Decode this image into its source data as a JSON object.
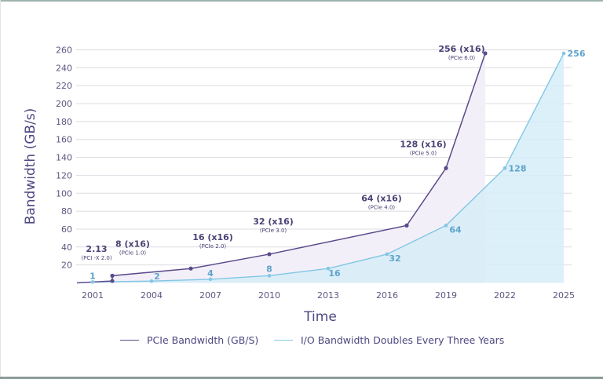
{
  "chart_data": {
    "type": "line",
    "title": "",
    "xlabel": "Time",
    "ylabel": "Bandwidth (GB/s)",
    "xlim": [
      2000,
      2026
    ],
    "ylim": [
      0,
      260
    ],
    "grid": true,
    "x_ticks": [
      "2001",
      "2004",
      "2007",
      "2010",
      "2013",
      "2016",
      "2019",
      "2022",
      "2025"
    ],
    "x_tick_values": [
      2001,
      2004,
      2007,
      2010,
      2013,
      2016,
      2019,
      2022,
      2025
    ],
    "y_ticks": [
      "20",
      "40",
      "60",
      "80",
      "100",
      "120",
      "140",
      "160",
      "180",
      "200",
      "220",
      "240",
      "260"
    ],
    "y_tick_values": [
      20,
      40,
      60,
      80,
      100,
      120,
      140,
      160,
      180,
      200,
      220,
      240,
      260
    ],
    "legend_position": "bottom",
    "series": [
      {
        "name": "PCIe Bandwidth (GB/S)",
        "color": "#5b4a8b",
        "fill": "#f3eff8",
        "x": [
          2000.2,
          2002,
          2002,
          2006,
          2010,
          2017,
          2019,
          2021
        ],
        "values": [
          0,
          2.13,
          8,
          16,
          32,
          64,
          128,
          256
        ],
        "labels": [
          {
            "index": 1,
            "value": "2.13",
            "sub": "(PCI -X 2.0)"
          },
          {
            "index": 2,
            "value": "8 (x16)",
            "sub": "(PCIe 1.0)"
          },
          {
            "index": 3,
            "value": "16 (x16)",
            "sub": "(PCIe 2.0)"
          },
          {
            "index": 4,
            "value": "32 (x16)",
            "sub": "(PCIe 3.0)"
          },
          {
            "index": 5,
            "value": "64 (x16)",
            "sub": "(PCIe 4.0)"
          },
          {
            "index": 6,
            "value": "128 (x16)",
            "sub": "(PCIe 5.0)"
          },
          {
            "index": 7,
            "value": "256 (x16)",
            "sub": "(PCIe 6.0)"
          }
        ]
      },
      {
        "name": "I/O Bandwidth Doubles Every Three Years",
        "color": "#82c6e4",
        "fill": "#d6edf8",
        "label_color": "#5ea3cc",
        "x": [
          2001,
          2004,
          2007,
          2010,
          2013,
          2016,
          2019,
          2022,
          2025
        ],
        "values": [
          1,
          2,
          4,
          8,
          16,
          32,
          64,
          128,
          256
        ],
        "labels": [
          "1",
          "2",
          "4",
          "8",
          "16",
          "32",
          "64",
          "128",
          "256"
        ]
      }
    ]
  },
  "legend": {
    "items": [
      {
        "label": "PCIe Bandwidth (GB/S)",
        "color": "#5b4a8b"
      },
      {
        "label": "I/O Bandwidth Doubles Every Three Years",
        "color": "#82c6e4"
      }
    ]
  }
}
